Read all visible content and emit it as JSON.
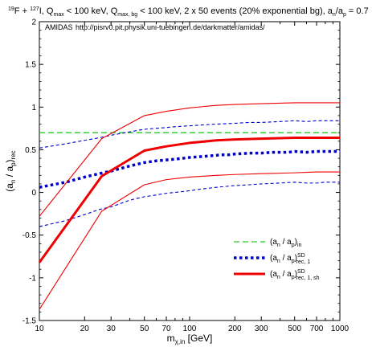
{
  "title_parts": {
    "sup1": "19",
    "t1": "F + ",
    "sup2": "127",
    "t2": "I, Q",
    "sub1": "max",
    "t3": " < 100 keV, Q",
    "sub2": "max, bg",
    "t4": " < 100 keV, 2 x 50 events (20% exponential bg), a",
    "sub3": "n",
    "t5": "/a",
    "sub4": "p",
    "t6": " = 0.7"
  },
  "annotation": {
    "name": "AMIDAS",
    "url": "http://pisrv0.pit.physik.uni-tuebingen.de/darkmatter/amidas/"
  },
  "xlabel": {
    "main": "m",
    "sub": "χ,in",
    "unit": " [GeV]"
  },
  "ylabel": {
    "open": "(a",
    "sub1": "n",
    "mid": " / a",
    "sub2": "p",
    "close": ")",
    "sub3": "rec"
  },
  "legend": [
    {
      "pre": "(a",
      "s1": "n",
      "mid": " / a",
      "s2": "p",
      "close": ")",
      "sub": "in",
      "sup": ""
    },
    {
      "pre": "(a",
      "s1": "n",
      "mid": " / a",
      "s2": "p",
      "close": ")",
      "sub": "rec, 1",
      "sup": "SD"
    },
    {
      "pre": "(a",
      "s1": "n",
      "mid": " / a",
      "s2": "p",
      "close": ")",
      "sub": "rec, 1, sh",
      "sup": "SD"
    }
  ],
  "chart_data": {
    "type": "line",
    "xscale": "log",
    "xlim": [
      10,
      1000
    ],
    "ylim": [
      -1.5,
      2
    ],
    "xticks": [
      10,
      20,
      30,
      50,
      70,
      100,
      200,
      300,
      500,
      700,
      1000
    ],
    "xtick_labels": [
      "10",
      "20",
      "30",
      "50",
      "70",
      "100",
      "200",
      "300",
      "500",
      "700",
      "1000"
    ],
    "yticks": [
      -1.5,
      -1,
      -0.5,
      0,
      0.5,
      1,
      1.5,
      2
    ],
    "ytick_labels": [
      "-1.5",
      "-1",
      "-0.5",
      "0",
      "0.5",
      "1",
      "1.5",
      "2"
    ],
    "legend_position": "bottom-right",
    "series": [
      {
        "role": "input",
        "style": "long-dash",
        "color": "#22cc22",
        "x": [
          10,
          1000
        ],
        "y": [
          0.7,
          0.7
        ]
      },
      {
        "role": "rec1",
        "style": "dotted",
        "color": "#0000cc",
        "x": [
          10,
          15,
          20,
          25,
          30,
          40,
          50,
          60,
          70,
          80,
          90,
          100,
          120,
          140,
          160,
          180,
          200,
          250,
          300,
          350,
          400,
          450,
          500,
          600,
          700,
          800,
          900,
          1000
        ],
        "y": [
          0.06,
          0.12,
          0.18,
          0.22,
          0.25,
          0.31,
          0.35,
          0.37,
          0.38,
          0.39,
          0.4,
          0.41,
          0.42,
          0.43,
          0.44,
          0.44,
          0.45,
          0.46,
          0.46,
          0.47,
          0.47,
          0.47,
          0.48,
          0.47,
          0.48,
          0.48,
          0.48,
          0.48
        ]
      },
      {
        "role": "rec1_upper",
        "style": "dashed-thin",
        "color": "#0000cc",
        "x": [
          10,
          15,
          20,
          25,
          30,
          40,
          50,
          60,
          70,
          80,
          100,
          120,
          150,
          200,
          250,
          300,
          400,
          500,
          600,
          700,
          800,
          1000
        ],
        "y": [
          0.52,
          0.57,
          0.61,
          0.64,
          0.67,
          0.71,
          0.74,
          0.75,
          0.76,
          0.77,
          0.78,
          0.79,
          0.8,
          0.81,
          0.82,
          0.82,
          0.83,
          0.84,
          0.83,
          0.84,
          0.84,
          0.84
        ]
      },
      {
        "role": "rec1_lower",
        "style": "dashed-thin",
        "color": "#0000cc",
        "x": [
          10,
          15,
          20,
          25,
          30,
          40,
          50,
          60,
          70,
          80,
          100,
          120,
          150,
          200,
          250,
          300,
          400,
          500,
          600,
          700,
          800,
          1000
        ],
        "y": [
          -0.4,
          -0.33,
          -0.26,
          -0.2,
          -0.17,
          -0.09,
          -0.05,
          -0.03,
          -0.01,
          0.0,
          0.02,
          0.04,
          0.06,
          0.08,
          0.09,
          0.1,
          0.11,
          0.12,
          0.11,
          0.11,
          0.12,
          0.12
        ]
      },
      {
        "role": "rec1_sh",
        "style": "solid-thick",
        "color": "#ee0000",
        "x": [
          10,
          26,
          50,
          70,
          100,
          150,
          200,
          300,
          500,
          700,
          1000
        ],
        "y": [
          -0.82,
          0.19,
          0.49,
          0.54,
          0.58,
          0.61,
          0.62,
          0.63,
          0.64,
          0.64,
          0.64
        ]
      },
      {
        "role": "rec1_sh_upper",
        "style": "solid-thin",
        "color": "#ee0000",
        "x": [
          10,
          26,
          50,
          70,
          100,
          150,
          200,
          300,
          500,
          700,
          1000
        ],
        "y": [
          -0.28,
          0.63,
          0.9,
          0.95,
          0.99,
          1.02,
          1.03,
          1.04,
          1.05,
          1.05,
          1.05
        ]
      },
      {
        "role": "rec1_sh_lower",
        "style": "solid-thin",
        "color": "#ee0000",
        "x": [
          10,
          26,
          50,
          70,
          100,
          150,
          200,
          300,
          500,
          700,
          1000
        ],
        "y": [
          -1.37,
          -0.22,
          0.09,
          0.15,
          0.18,
          0.2,
          0.21,
          0.22,
          0.23,
          0.24,
          0.24
        ]
      }
    ]
  }
}
